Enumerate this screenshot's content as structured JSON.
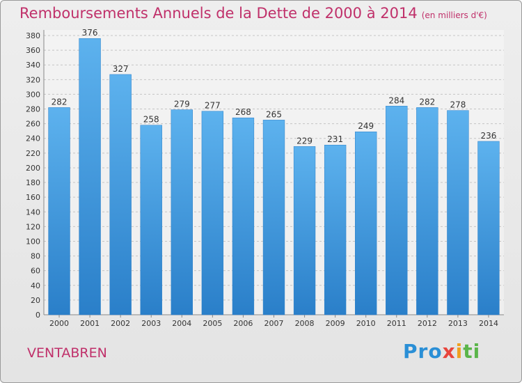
{
  "chart_data": {
    "type": "bar",
    "title": "Remboursements Annuels de la Dette de 2000 à 2014",
    "subtitle": "(en milliers d'€)",
    "categories": [
      "2000",
      "2001",
      "2002",
      "2003",
      "2004",
      "2005",
      "2006",
      "2007",
      "2008",
      "2009",
      "2010",
      "2011",
      "2012",
      "2013",
      "2014"
    ],
    "values": [
      282,
      376,
      327,
      258,
      279,
      277,
      268,
      265,
      229,
      231,
      249,
      284,
      282,
      278,
      236
    ],
    "ylim": [
      0,
      380
    ],
    "yticks": [
      0,
      20,
      40,
      60,
      80,
      100,
      120,
      140,
      160,
      180,
      200,
      220,
      240,
      260,
      280,
      300,
      320,
      340,
      360,
      380
    ],
    "xlabel": "",
    "ylabel": "",
    "grid": true,
    "bar_color": "#4aa3e6"
  },
  "location": "VENTABREN",
  "logo": {
    "part1": "Pro",
    "part2": "x",
    "part3": "i",
    "part4": "ti"
  }
}
